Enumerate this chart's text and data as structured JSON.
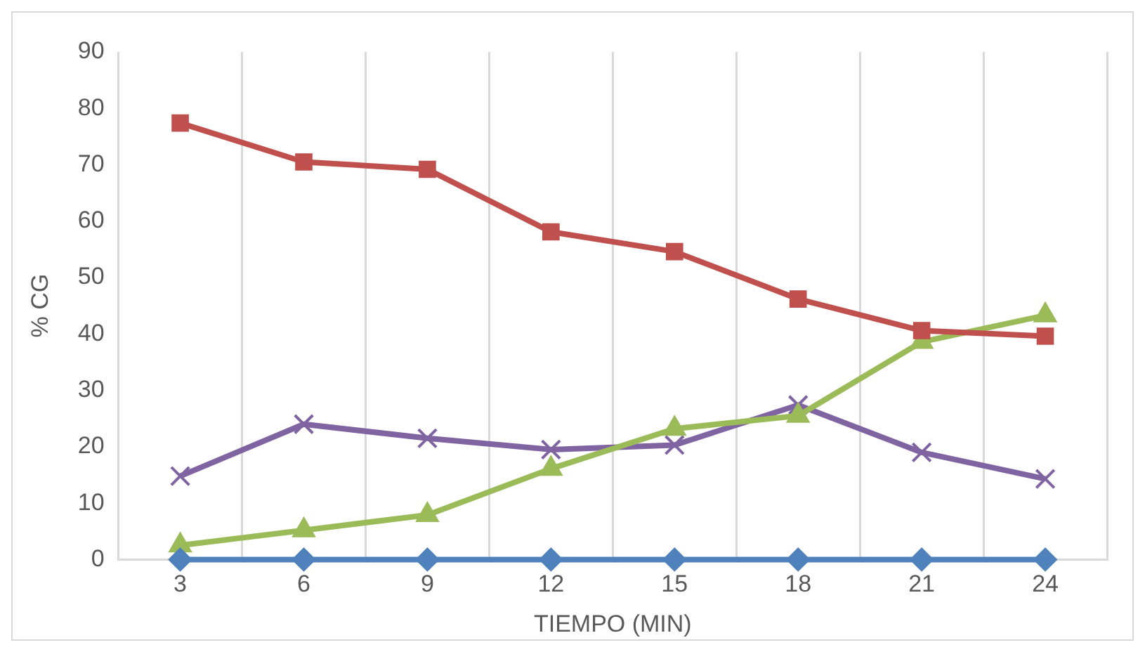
{
  "chart_data": {
    "type": "line",
    "xlabel": "TIEMPO (MIN)",
    "ylabel": "% CG",
    "categories": [
      "3",
      "6",
      "9",
      "12",
      "15",
      "18",
      "21",
      "24"
    ],
    "series": [
      {
        "color": "#4f81bd",
        "marker": "diamond",
        "values": [
          0,
          0,
          0,
          0,
          0,
          0,
          0,
          0
        ]
      },
      {
        "color": "#c0504d",
        "marker": "square",
        "values": [
          77.4,
          70.5,
          69.2,
          58.1,
          54.6,
          46.2,
          40.6,
          39.6
        ]
      },
      {
        "color": "#9bbb59",
        "marker": "triangle",
        "values": [
          2.5,
          5.2,
          7.9,
          16.1,
          23.2,
          25.5,
          38.6,
          43.3
        ]
      },
      {
        "color": "#8064a2",
        "marker": "cross",
        "values": [
          14.8,
          24,
          21.5,
          19.5,
          20.3,
          27.4,
          19,
          14.3
        ]
      }
    ],
    "ylim": [
      0,
      90
    ],
    "yticks": [
      0,
      10,
      20,
      30,
      40,
      50,
      60,
      70,
      80,
      90
    ],
    "grid": "x",
    "legend": false
  }
}
